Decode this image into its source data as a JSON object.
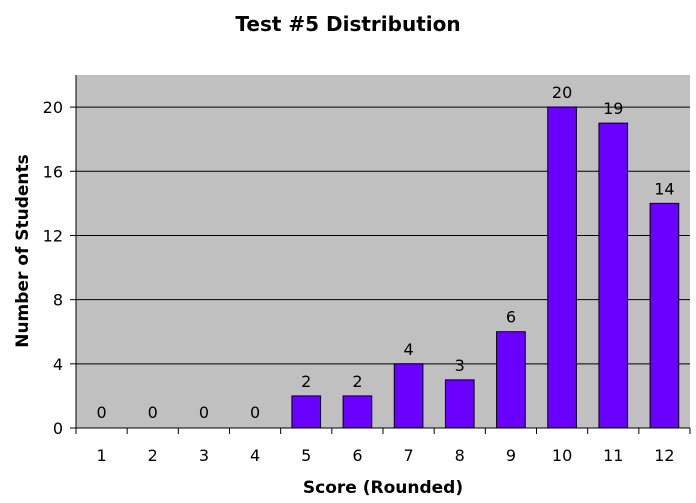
{
  "chart_data": {
    "type": "bar",
    "title": "Test #5 Distribution",
    "xlabel": "Score (Rounded)",
    "ylabel": "Number of Students",
    "categories": [
      "1",
      "2",
      "3",
      "4",
      "5",
      "6",
      "7",
      "8",
      "9",
      "10",
      "11",
      "12"
    ],
    "values": [
      0,
      0,
      0,
      0,
      2,
      2,
      4,
      3,
      6,
      20,
      19,
      14
    ],
    "data_labels": [
      "0",
      "0",
      "0",
      "0",
      "2",
      "2",
      "4",
      "3",
      "6",
      "20",
      "19",
      "14"
    ],
    "ylim": [
      0,
      22
    ],
    "yticks": [
      0,
      4,
      8,
      12,
      16,
      20
    ],
    "grid": "horizontal",
    "legend": "none",
    "colors": {
      "bar": "#6a00ff",
      "bar_edge": "#000000",
      "plot_background": "#c0c0c0",
      "gridline": "#000000"
    }
  }
}
